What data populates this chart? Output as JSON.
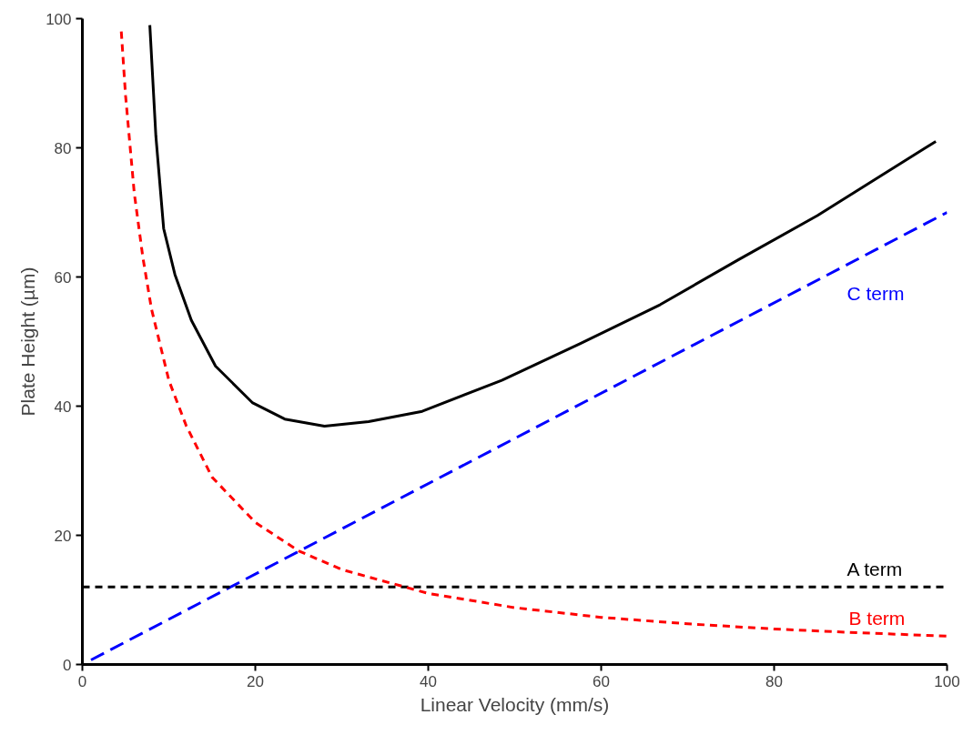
{
  "chart_data": {
    "type": "line",
    "xlabel": "Linear Velocity (mm/s)",
    "ylabel": "Plate Height (µm)",
    "xlim": [
      0,
      100
    ],
    "ylim": [
      0,
      100
    ],
    "xticks": [
      0,
      20,
      40,
      60,
      80,
      100
    ],
    "yticks": [
      0,
      20,
      40,
      60,
      80,
      100
    ],
    "grid": false,
    "marker": "none",
    "series": [
      {
        "color": "#000000",
        "line_style": "solid",
        "x": [
          7.8,
          8.5,
          9.4,
          10.7,
          12.6,
          15.4,
          19.7,
          23.4,
          28,
          33.1,
          39.3,
          48.5,
          57.6,
          66.8,
          75.9,
          85,
          98.7
        ],
        "values": [
          99,
          81.8,
          67.5,
          60.4,
          53.3,
          46.2,
          40.5,
          38,
          36.9,
          37.6,
          39.2,
          44,
          49.7,
          55.7,
          62.7,
          69.5,
          81
        ]
      },
      {
        "name": "C term",
        "color": "#0000ff",
        "line_style": "dashed",
        "x": [
          1,
          100
        ],
        "values": [
          0.7,
          70
        ]
      },
      {
        "name": "A term",
        "color": "#000000",
        "line_style": "dashed",
        "x": [
          0,
          100
        ],
        "values": [
          12,
          12
        ]
      },
      {
        "name": "B term",
        "color": "#ff0000",
        "line_style": "dashed",
        "x": [
          4.5,
          5,
          6,
          7,
          8,
          10,
          12,
          15,
          20,
          25,
          30,
          40,
          50,
          60,
          70,
          80,
          90,
          100
        ],
        "values": [
          98,
          88,
          73,
          63,
          55,
          44,
          37,
          29,
          22,
          17.6,
          14.7,
          11,
          8.8,
          7.3,
          6.3,
          5.5,
          4.9,
          4.4
        ]
      }
    ]
  }
}
